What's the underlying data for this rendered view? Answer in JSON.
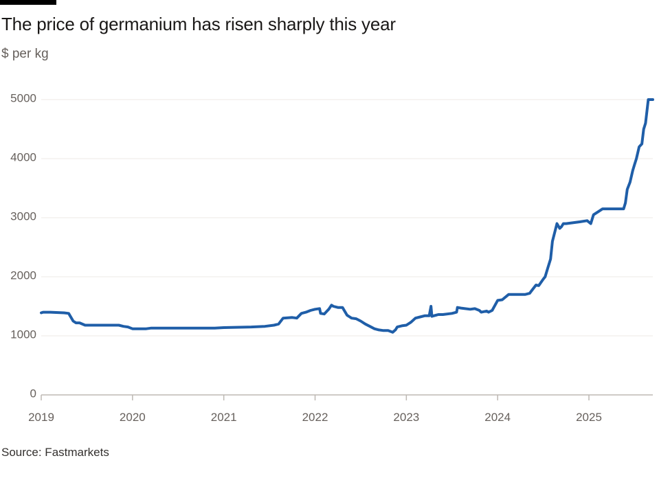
{
  "title": "The price of germanium has risen sharply this year",
  "subtitle": "$ per kg",
  "source": "Source: Fastmarkets",
  "colors": {
    "line": "#1f5ea8",
    "grid": "#ece8e4",
    "axis": "#bdb8b3",
    "text": "#66605c"
  },
  "chart_data": {
    "type": "line",
    "title": "The price of germanium has risen sharply this year",
    "ylabel": "$ per kg",
    "xlabel": "",
    "xlim": [
      2019.0,
      2025.7
    ],
    "ylim": [
      0,
      5000
    ],
    "x_ticks": [
      "2019",
      "2020",
      "2021",
      "2022",
      "2023",
      "2024",
      "2025"
    ],
    "y_ticks": [
      0,
      1000,
      2000,
      3000,
      4000,
      5000
    ],
    "grid": true,
    "legend": "none",
    "series": [
      {
        "x": [
          2019.0,
          2019.02,
          2019.1,
          2019.25,
          2019.3,
          2019.35,
          2019.38,
          2019.42,
          2019.48,
          2019.6,
          2019.85,
          2019.9,
          2019.95,
          2020.0,
          2020.15,
          2020.2,
          2020.5,
          2020.9,
          2021.0,
          2021.3,
          2021.45,
          2021.55,
          2021.6,
          2021.65,
          2021.75,
          2021.8,
          2021.85,
          2021.9,
          2021.95,
          2022.0,
          2022.05,
          2022.06,
          2022.1,
          2022.15,
          2022.18,
          2022.2,
          2022.25,
          2022.3,
          2022.35,
          2022.38,
          2022.4,
          2022.45,
          2022.5,
          2022.55,
          2022.6,
          2022.65,
          2022.7,
          2022.75,
          2022.8,
          2022.85,
          2022.88,
          2022.9,
          2022.95,
          2023.0,
          2023.05,
          2023.1,
          2023.15,
          2023.2,
          2023.25,
          2023.27,
          2023.28,
          2023.3,
          2023.35,
          2023.4,
          2023.5,
          2023.55,
          2023.56,
          2023.6,
          2023.7,
          2023.75,
          2023.8,
          2023.82,
          2023.88,
          2023.9,
          2023.94,
          2024.0,
          2024.05,
          2024.12,
          2024.3,
          2024.35,
          2024.38,
          2024.42,
          2024.45,
          2024.5,
          2024.52,
          2024.55,
          2024.58,
          2024.6,
          2024.65,
          2024.68,
          2024.7,
          2024.72,
          2024.75,
          2024.9,
          2024.98,
          2025.02,
          2025.05,
          2025.1,
          2025.15,
          2025.38,
          2025.4,
          2025.42,
          2025.45,
          2025.48,
          2025.5,
          2025.52,
          2025.55,
          2025.58,
          2025.6,
          2025.62,
          2025.65,
          2025.7
        ],
        "values": [
          1390,
          1400,
          1400,
          1390,
          1380,
          1250,
          1220,
          1220,
          1180,
          1180,
          1180,
          1160,
          1150,
          1120,
          1120,
          1130,
          1130,
          1130,
          1140,
          1150,
          1160,
          1180,
          1200,
          1300,
          1310,
          1300,
          1380,
          1400,
          1430,
          1450,
          1460,
          1380,
          1370,
          1450,
          1520,
          1500,
          1480,
          1480,
          1350,
          1320,
          1300,
          1290,
          1250,
          1200,
          1160,
          1120,
          1100,
          1090,
          1090,
          1060,
          1100,
          1150,
          1170,
          1180,
          1230,
          1300,
          1320,
          1340,
          1340,
          1500,
          1330,
          1340,
          1360,
          1360,
          1380,
          1400,
          1480,
          1470,
          1450,
          1460,
          1430,
          1400,
          1420,
          1400,
          1430,
          1600,
          1610,
          1700,
          1700,
          1720,
          1780,
          1860,
          1850,
          1960,
          2000,
          2150,
          2300,
          2600,
          2900,
          2820,
          2850,
          2900,
          2900,
          2930,
          2950,
          2900,
          3050,
          3100,
          3150,
          3150,
          3250,
          3480,
          3600,
          3800,
          3900,
          4000,
          4200,
          4250,
          4500,
          4600,
          5000,
          5000
        ]
      }
    ]
  }
}
